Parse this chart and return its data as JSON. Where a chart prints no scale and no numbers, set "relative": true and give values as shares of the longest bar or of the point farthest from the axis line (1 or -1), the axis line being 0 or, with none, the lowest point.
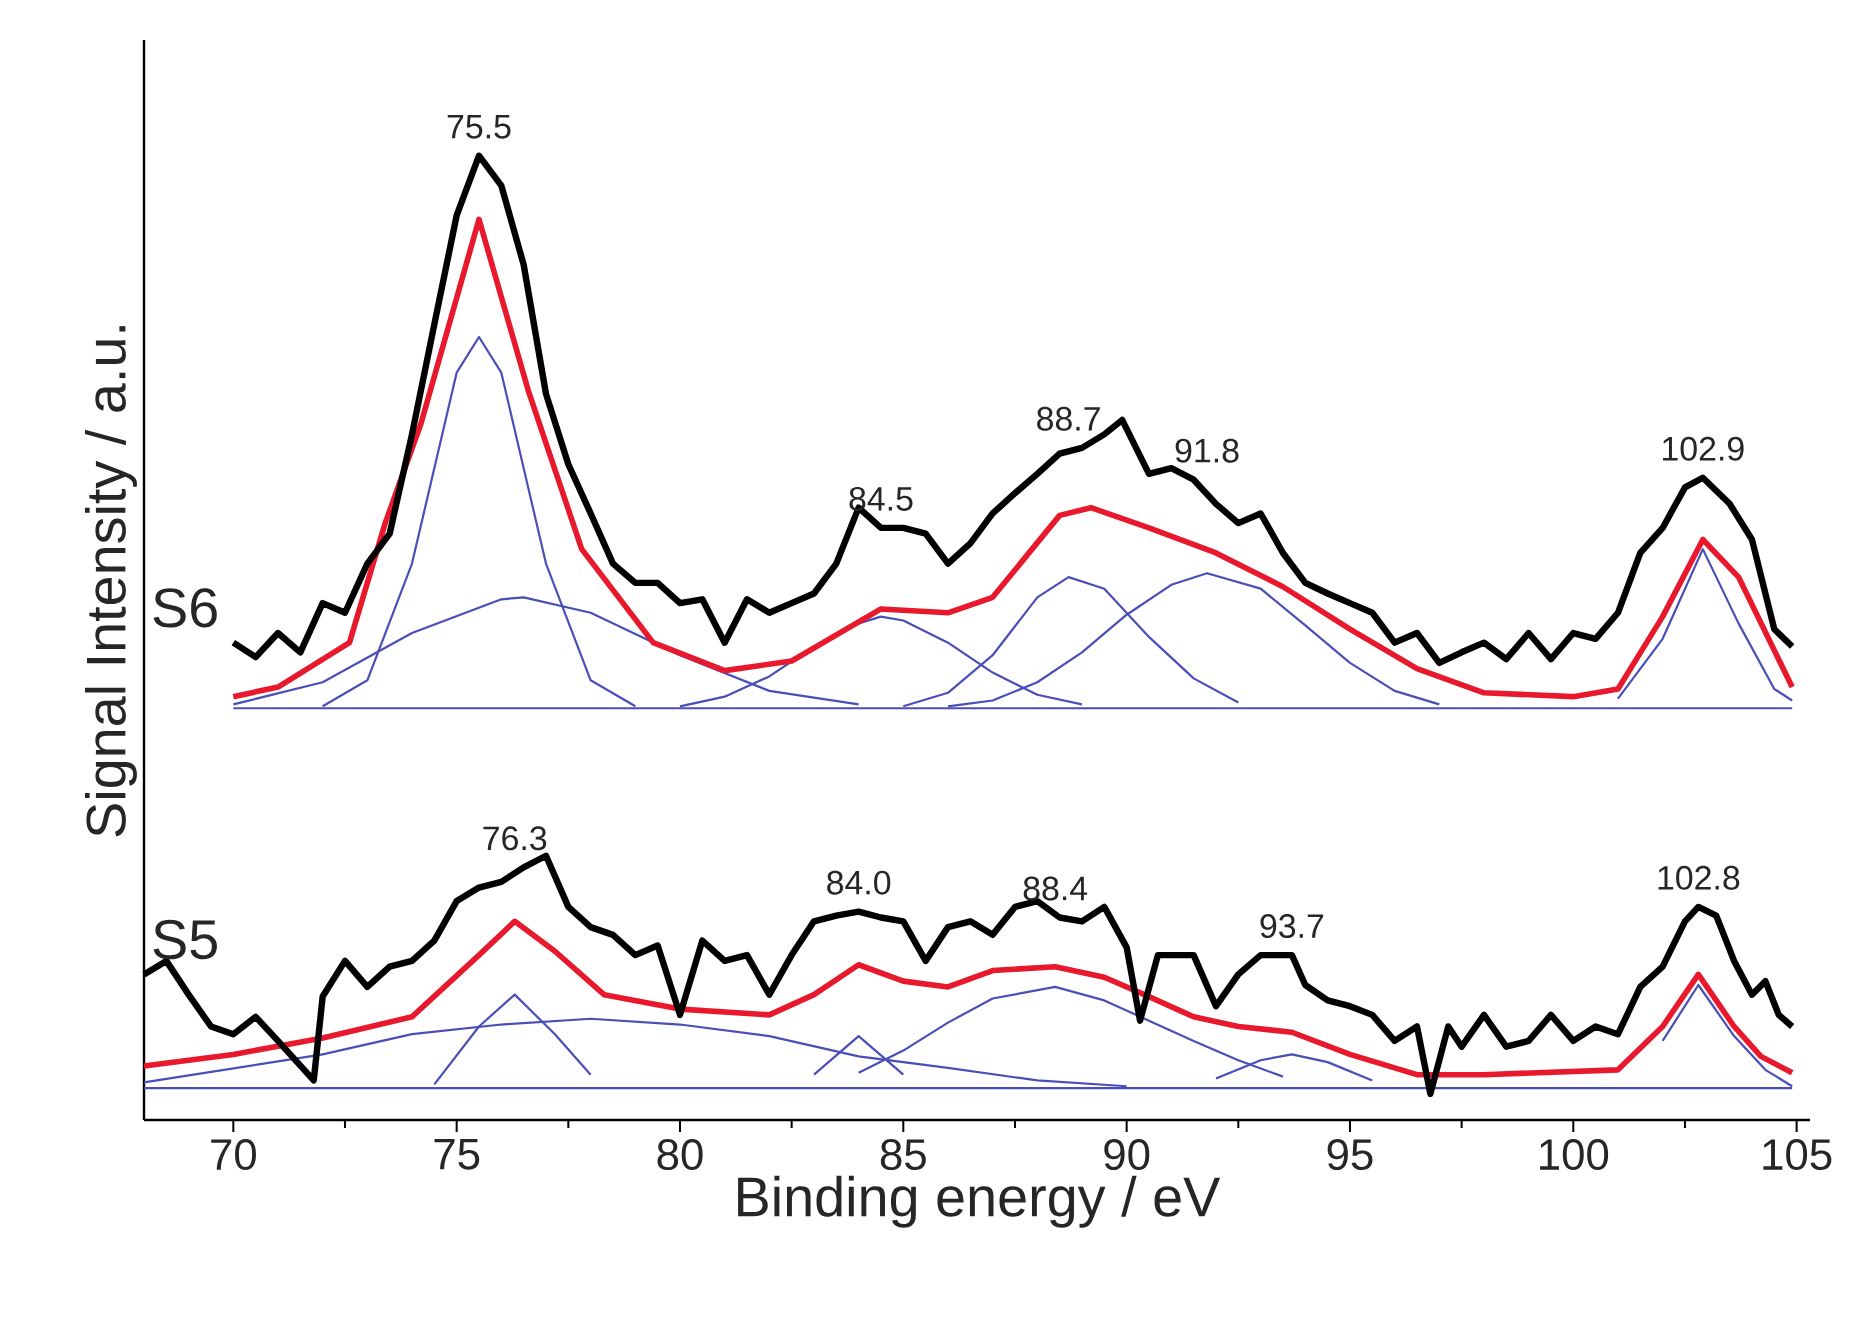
{
  "chart_data": {
    "type": "line",
    "relative": true,
    "xlabel": "Binding energy / eV",
    "ylabel": "Signal Intensity / a.u.",
    "xlim": [
      68,
      105.3
    ],
    "xticks": [
      70,
      75,
      80,
      85,
      90,
      95,
      100,
      105
    ],
    "series": [
      {
        "color": "#4a4fb8",
        "x": [
          70,
          104.9
        ],
        "values": [
          0.427,
          0.427
        ]
      },
      {
        "color": "#4a4fb8",
        "x": [
          72,
          73,
          74,
          75,
          75.5,
          76,
          77,
          78,
          79
        ],
        "values": [
          0.429,
          0.456,
          0.577,
          0.775,
          0.812,
          0.775,
          0.577,
          0.456,
          0.429
        ]
      },
      {
        "color": "#4a4fb8",
        "x": [
          70,
          72,
          74,
          76,
          76.5,
          78,
          80,
          82,
          84
        ],
        "values": [
          0.431,
          0.454,
          0.505,
          0.54,
          0.542,
          0.526,
          0.482,
          0.445,
          0.431
        ]
      },
      {
        "color": "#4a4fb8",
        "x": [
          80,
          81,
          82,
          83,
          84,
          84.5,
          85,
          86,
          87,
          88,
          89
        ],
        "values": [
          0.429,
          0.439,
          0.46,
          0.491,
          0.515,
          0.522,
          0.518,
          0.495,
          0.464,
          0.441,
          0.431
        ]
      },
      {
        "color": "#4a4fb8",
        "x": [
          85,
          86,
          87,
          88,
          88.7,
          89.5,
          90.5,
          91.5,
          92.5
        ],
        "values": [
          0.429,
          0.443,
          0.482,
          0.542,
          0.563,
          0.551,
          0.501,
          0.458,
          0.433
        ]
      },
      {
        "color": "#4a4fb8",
        "x": [
          86,
          87,
          88,
          89,
          90,
          91,
          91.8,
          93,
          94,
          95,
          96,
          97
        ],
        "values": [
          0.429,
          0.435,
          0.454,
          0.485,
          0.524,
          0.555,
          0.567,
          0.551,
          0.513,
          0.474,
          0.445,
          0.431
        ]
      },
      {
        "color": "#4a4fb8",
        "x": [
          101,
          102,
          102.9,
          103.7,
          104.5,
          104.9
        ],
        "values": [
          0.437,
          0.499,
          0.592,
          0.515,
          0.447,
          0.435
        ]
      },
      {
        "color": "#e8192c",
        "x": [
          70,
          71,
          72.6,
          73.4,
          74.2,
          75.5,
          76.6,
          77.8,
          79.4,
          81,
          82.5,
          84.5,
          86,
          87,
          88.5,
          89.2,
          90.5,
          92,
          93.5,
          95,
          96.5,
          98,
          100,
          101,
          102,
          102.9,
          103.7,
          104.9
        ],
        "values": [
          0.439,
          0.449,
          0.495,
          0.619,
          0.722,
          0.934,
          0.757,
          0.592,
          0.495,
          0.466,
          0.476,
          0.53,
          0.526,
          0.542,
          0.627,
          0.635,
          0.614,
          0.588,
          0.553,
          0.509,
          0.468,
          0.443,
          0.439,
          0.447,
          0.522,
          0.602,
          0.563,
          0.449
        ]
      },
      {
        "name": "S6",
        "color": "#000000",
        "x": [
          70,
          70.5,
          71,
          71.5,
          72,
          72.5,
          73,
          73.5,
          74,
          74.5,
          75,
          75.5,
          76,
          76.5,
          77,
          77.5,
          78,
          78.5,
          79,
          79.5,
          80,
          80.5,
          81,
          81.5,
          82,
          82.5,
          83,
          83.5,
          84,
          84.5,
          85,
          85.5,
          86,
          86.5,
          87,
          87.5,
          88,
          88.5,
          89,
          89.5,
          89.9,
          90.5,
          91,
          91.5,
          92,
          92.5,
          93,
          93.5,
          94,
          94.5,
          95,
          95.5,
          96,
          96.5,
          97,
          97.5,
          98,
          98.5,
          99,
          99.5,
          100,
          100.5,
          101,
          101.5,
          102,
          102.5,
          102.9,
          103.5,
          104,
          104.5,
          104.9
        ],
        "values": [
          0.495,
          0.48,
          0.505,
          0.485,
          0.536,
          0.526,
          0.577,
          0.608,
          0.711,
          0.825,
          0.938,
          1.0,
          0.969,
          0.887,
          0.753,
          0.68,
          0.629,
          0.577,
          0.557,
          0.557,
          0.536,
          0.54,
          0.495,
          0.54,
          0.526,
          0.536,
          0.546,
          0.577,
          0.635,
          0.614,
          0.614,
          0.608,
          0.577,
          0.598,
          0.629,
          0.65,
          0.67,
          0.691,
          0.697,
          0.711,
          0.726,
          0.67,
          0.676,
          0.664,
          0.639,
          0.619,
          0.629,
          0.588,
          0.557,
          0.546,
          0.536,
          0.526,
          0.495,
          0.505,
          0.474,
          0.485,
          0.495,
          0.478,
          0.505,
          0.478,
          0.505,
          0.499,
          0.526,
          0.588,
          0.614,
          0.656,
          0.666,
          0.639,
          0.602,
          0.509,
          0.491
        ]
      },
      {
        "color": "#4a4fb8",
        "x": [
          68,
          104.9
        ],
        "values": [
          0.033,
          0.033
        ]
      },
      {
        "color": "#4a4fb8",
        "x": [
          68,
          72,
          74,
          76,
          78,
          80,
          82,
          84,
          86,
          88,
          90
        ],
        "values": [
          0.039,
          0.068,
          0.089,
          0.099,
          0.105,
          0.099,
          0.087,
          0.066,
          0.054,
          0.041,
          0.035
        ]
      },
      {
        "color": "#4a4fb8",
        "x": [
          74.5,
          75.5,
          76.3,
          77.2,
          78
        ],
        "values": [
          0.037,
          0.097,
          0.13,
          0.089,
          0.047
        ]
      },
      {
        "color": "#4a4fb8",
        "x": [
          83,
          84,
          85
        ],
        "values": [
          0.047,
          0.087,
          0.047
        ]
      },
      {
        "color": "#4a4fb8",
        "x": [
          84,
          85,
          86,
          87,
          88.4,
          89.5,
          90.5,
          91.5,
          92.5,
          93.5
        ],
        "values": [
          0.049,
          0.072,
          0.101,
          0.126,
          0.138,
          0.124,
          0.103,
          0.082,
          0.062,
          0.045
        ]
      },
      {
        "color": "#4a4fb8",
        "x": [
          92,
          93,
          93.7,
          94.5,
          95.5
        ],
        "values": [
          0.043,
          0.062,
          0.068,
          0.06,
          0.041
        ]
      },
      {
        "color": "#4a4fb8",
        "x": [
          102,
          102.8,
          103.6,
          104.3,
          104.9
        ],
        "values": [
          0.082,
          0.14,
          0.087,
          0.052,
          0.035
        ]
      },
      {
        "color": "#e8192c",
        "x": [
          68,
          70,
          72,
          74,
          75.5,
          76.3,
          77.2,
          78.3,
          80,
          82,
          83,
          84,
          85,
          86,
          87,
          88.4,
          89.5,
          90.5,
          91.5,
          92.5,
          93.7,
          95,
          96.5,
          98,
          101,
          102,
          102.8,
          103.6,
          104.2,
          104.9
        ],
        "values": [
          0.056,
          0.068,
          0.085,
          0.107,
          0.171,
          0.206,
          0.175,
          0.13,
          0.115,
          0.109,
          0.13,
          0.161,
          0.144,
          0.138,
          0.155,
          0.159,
          0.148,
          0.128,
          0.107,
          0.097,
          0.091,
          0.068,
          0.047,
          0.047,
          0.052,
          0.097,
          0.151,
          0.097,
          0.066,
          0.049
        ]
      },
      {
        "name": "S5",
        "color": "#000000",
        "x": [
          68,
          68.5,
          69,
          69.5,
          70,
          70.5,
          71,
          71.8,
          72,
          72.5,
          73,
          73.5,
          74,
          74.5,
          75,
          75.5,
          76,
          76.5,
          77,
          77.5,
          78,
          78.5,
          79,
          79.5,
          80,
          80.5,
          81,
          81.5,
          82,
          82.5,
          83,
          83.5,
          84,
          84.5,
          85,
          85.5,
          86,
          86.5,
          87,
          87.5,
          88,
          88.5,
          89,
          89.5,
          90,
          90.3,
          90.7,
          91.5,
          92,
          92.5,
          93,
          93.7,
          94,
          94.5,
          95,
          95.5,
          96,
          96.5,
          96.8,
          97.2,
          97.5,
          98,
          98.5,
          99,
          99.5,
          100,
          100.5,
          101,
          101.5,
          102,
          102.5,
          102.8,
          103.2,
          103.6,
          104,
          104.3,
          104.6,
          104.9
        ],
        "values": [
          0.151,
          0.165,
          0.13,
          0.097,
          0.089,
          0.107,
          0.082,
          0.041,
          0.128,
          0.165,
          0.138,
          0.159,
          0.165,
          0.186,
          0.227,
          0.241,
          0.247,
          0.262,
          0.274,
          0.221,
          0.2,
          0.192,
          0.171,
          0.181,
          0.109,
          0.186,
          0.165,
          0.171,
          0.13,
          0.171,
          0.206,
          0.212,
          0.216,
          0.21,
          0.206,
          0.165,
          0.2,
          0.206,
          0.192,
          0.221,
          0.227,
          0.21,
          0.206,
          0.221,
          0.179,
          0.103,
          0.171,
          0.171,
          0.118,
          0.151,
          0.171,
          0.171,
          0.14,
          0.124,
          0.118,
          0.109,
          0.082,
          0.097,
          0.027,
          0.097,
          0.076,
          0.109,
          0.076,
          0.082,
          0.109,
          0.082,
          0.097,
          0.089,
          0.138,
          0.159,
          0.206,
          0.221,
          0.212,
          0.165,
          0.13,
          0.144,
          0.109,
          0.097
        ]
      }
    ],
    "annotations": [
      {
        "text": "75.5",
        "x": 75.5,
        "y": 1.0
      },
      {
        "text": "84.5",
        "x": 84.5,
        "y": 0.614
      },
      {
        "text": "88.7",
        "x": 88.7,
        "y": 0.697
      },
      {
        "text": "91.8",
        "x": 91.8,
        "y": 0.664
      },
      {
        "text": "102.9",
        "x": 102.9,
        "y": 0.666
      },
      {
        "text": "76.3",
        "x": 76.3,
        "y": 0.262
      },
      {
        "text": "84.0",
        "x": 84.0,
        "y": 0.216
      },
      {
        "text": "88.4",
        "x": 88.4,
        "y": 0.21
      },
      {
        "text": "93.7",
        "x": 93.7,
        "y": 0.171
      },
      {
        "text": "102.8",
        "x": 102.8,
        "y": 0.221
      }
    ]
  }
}
